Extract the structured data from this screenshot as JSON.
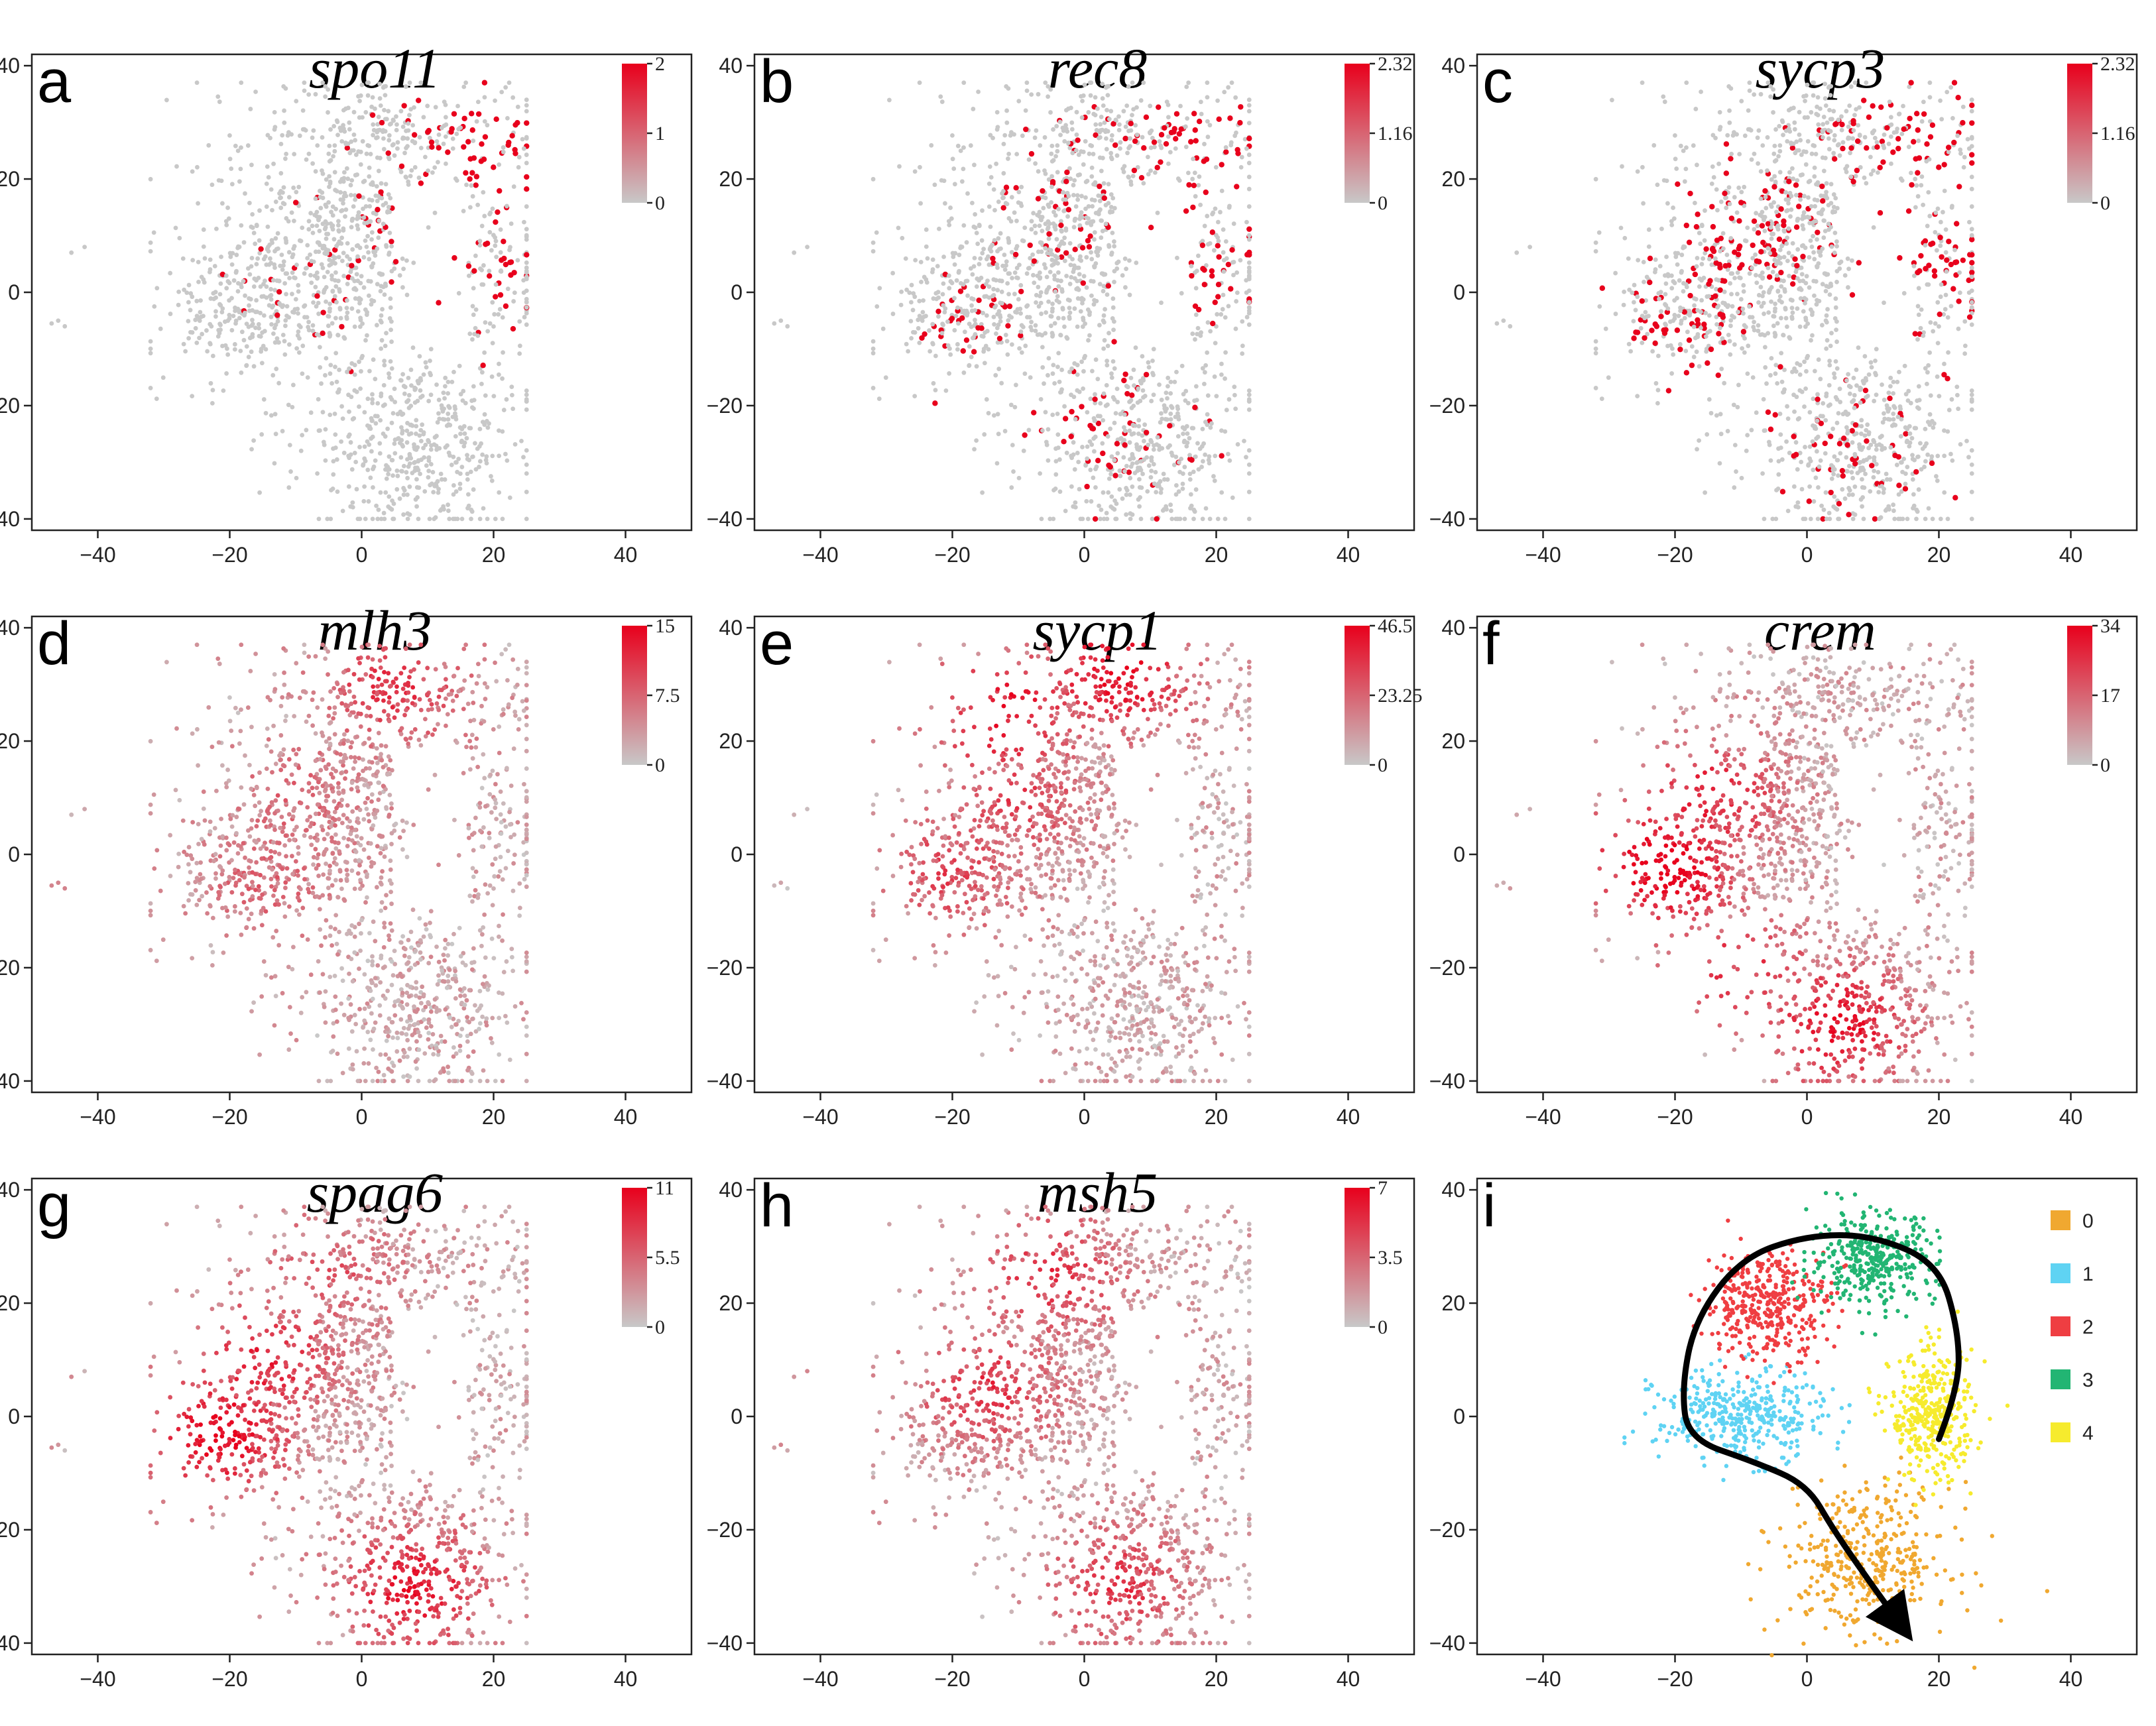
{
  "figure": {
    "description_free": true,
    "gray": "#c8c8c8",
    "red": "#e8001c",
    "arrow_color": "#000000"
  },
  "chart_data": [
    {
      "panel": "a",
      "type": "scatter",
      "title": "spo11",
      "mode": "sparse",
      "colorbar": {
        "max": 2,
        "ticks": [
          "2",
          "1",
          "0"
        ]
      },
      "hotspots": [
        [
          20,
          25,
          1.0
        ],
        [
          22,
          5,
          0.8
        ],
        [
          10,
          10,
          0.3
        ],
        [
          -5,
          0,
          0.2
        ]
      ],
      "x_ticks": [
        "−40",
        "−20",
        "0",
        "20",
        "40"
      ],
      "y_ticks": [
        "40",
        "20",
        "0",
        "−20",
        "−40"
      ],
      "xlim": [
        -50,
        50
      ],
      "ylim": [
        -42,
        42
      ]
    },
    {
      "panel": "b",
      "type": "scatter",
      "title": "rec8",
      "mode": "sparse",
      "colorbar": {
        "max": 2.32,
        "ticks": [
          "2.32",
          "1.16",
          "0"
        ]
      },
      "hotspots": [
        [
          18,
          25,
          1.0
        ],
        [
          20,
          5,
          0.6
        ],
        [
          -20,
          -5,
          0.4
        ],
        [
          5,
          -25,
          0.4
        ],
        [
          -5,
          15,
          0.4
        ]
      ],
      "x_ticks": [
        "−40",
        "−20",
        "0",
        "20",
        "40"
      ],
      "y_ticks": [
        "40",
        "20",
        "0",
        "−20",
        "−40"
      ],
      "xlim": [
        -50,
        50
      ],
      "ylim": [
        -42,
        42
      ]
    },
    {
      "panel": "c",
      "type": "scatter",
      "title": "sycp3",
      "mode": "sparse",
      "colorbar": {
        "max": 2.32,
        "ticks": [
          "2.32",
          "1.16",
          "0"
        ]
      },
      "hotspots": [
        [
          15,
          30,
          1.0
        ],
        [
          22,
          5,
          1.0
        ],
        [
          -10,
          10,
          0.8
        ],
        [
          -20,
          -5,
          0.6
        ],
        [
          5,
          -30,
          0.5
        ]
      ],
      "x_ticks": [
        "−40",
        "−20",
        "0",
        "20",
        "40"
      ],
      "y_ticks": [
        "40",
        "20",
        "0",
        "−20",
        "−40"
      ],
      "xlim": [
        -50,
        50
      ],
      "ylim": [
        -42,
        42
      ]
    },
    {
      "panel": "d",
      "type": "scatter",
      "title": "mlh3",
      "mode": "dense",
      "colorbar": {
        "max": 15,
        "ticks": [
          "15",
          "7.5",
          "0"
        ]
      },
      "hotspots": [
        [
          5,
          30,
          0.6
        ],
        [
          -10,
          10,
          0.3
        ],
        [
          -15,
          -5,
          0.3
        ]
      ],
      "x_ticks": [
        "−40",
        "−20",
        "0",
        "20",
        "40"
      ],
      "y_ticks": [
        "40",
        "20",
        "0",
        "−20",
        "−40"
      ],
      "xlim": [
        -50,
        50
      ],
      "ylim": [
        -42,
        42
      ]
    },
    {
      "panel": "e",
      "type": "scatter",
      "title": "sycp1",
      "mode": "dense",
      "colorbar": {
        "max": 46.5,
        "ticks": [
          "46.5",
          "23.25",
          "0"
        ]
      },
      "hotspots": [
        [
          5,
          33,
          0.9
        ],
        [
          -12,
          25,
          0.8
        ],
        [
          -10,
          10,
          0.5
        ],
        [
          -20,
          -3,
          0.5
        ]
      ],
      "x_ticks": [
        "−40",
        "−20",
        "0",
        "20",
        "40"
      ],
      "y_ticks": [
        "40",
        "20",
        "0",
        "−20",
        "−40"
      ],
      "xlim": [
        -50,
        50
      ],
      "ylim": [
        -42,
        42
      ]
    },
    {
      "panel": "f",
      "type": "scatter",
      "title": "crem",
      "mode": "dense",
      "colorbar": {
        "max": 34,
        "ticks": [
          "34",
          "17",
          "0"
        ]
      },
      "hotspots": [
        [
          -22,
          -2,
          1.0
        ],
        [
          -15,
          10,
          0.7
        ],
        [
          5,
          -30,
          0.8
        ],
        [
          -10,
          -20,
          0.6
        ]
      ],
      "x_ticks": [
        "−40",
        "−20",
        "0",
        "20",
        "40"
      ],
      "y_ticks": [
        "40",
        "20",
        "0",
        "−20",
        "−40"
      ],
      "xlim": [
        -50,
        50
      ],
      "ylim": [
        -42,
        42
      ]
    },
    {
      "panel": "g",
      "type": "scatter",
      "title": "spag6",
      "mode": "dense",
      "colorbar": {
        "max": 11,
        "ticks": [
          "11",
          "5.5",
          "0"
        ]
      },
      "hotspots": [
        [
          -22,
          -3,
          0.9
        ],
        [
          -15,
          10,
          0.7
        ],
        [
          8,
          -30,
          0.8
        ],
        [
          -5,
          25,
          0.4
        ]
      ],
      "x_ticks": [
        "−40",
        "−20",
        "0",
        "20",
        "40"
      ],
      "y_ticks": [
        "40",
        "20",
        "0",
        "−20",
        "−40"
      ],
      "xlim": [
        -50,
        50
      ],
      "ylim": [
        -42,
        42
      ]
    },
    {
      "panel": "h",
      "type": "scatter",
      "title": "msh5",
      "mode": "dense",
      "colorbar": {
        "max": 7,
        "ticks": [
          "7",
          "3.5",
          "0"
        ]
      },
      "hotspots": [
        [
          -15,
          5,
          0.6
        ],
        [
          -5,
          25,
          0.6
        ],
        [
          5,
          -30,
          0.6
        ]
      ],
      "x_ticks": [
        "−40",
        "−20",
        "0",
        "20",
        "40"
      ],
      "y_ticks": [
        "40",
        "20",
        "0",
        "−20",
        "−40"
      ],
      "xlim": [
        -50,
        50
      ],
      "ylim": [
        -42,
        42
      ]
    },
    {
      "panel": "i",
      "type": "scatter",
      "title": "",
      "mode": "clusters",
      "legend": [
        {
          "label": "0",
          "color": "#f0a830"
        },
        {
          "label": "1",
          "color": "#5fd3f3"
        },
        {
          "label": "2",
          "color": "#ef3e42"
        },
        {
          "label": "3",
          "color": "#22b573"
        },
        {
          "label": "4",
          "color": "#f6eb2d"
        }
      ],
      "clusters": [
        {
          "label": "0",
          "cx": 9,
          "cy": -25,
          "sx": 8,
          "sy": 8
        },
        {
          "label": "1",
          "cx": -10,
          "cy": 0,
          "sx": 8,
          "sy": 5
        },
        {
          "label": "2",
          "cx": -6,
          "cy": 20,
          "sx": 6,
          "sy": 6
        },
        {
          "label": "3",
          "cx": 10,
          "cy": 28,
          "sx": 6,
          "sy": 5
        },
        {
          "label": "4",
          "cx": 19,
          "cy": 0,
          "sx": 4,
          "sy": 7
        }
      ],
      "trajectory": [
        [
          20,
          -4
        ],
        [
          23,
          5
        ],
        [
          23,
          15
        ],
        [
          20,
          27
        ],
        [
          10,
          32
        ],
        [
          0,
          32
        ],
        [
          -10,
          28
        ],
        [
          -17,
          17
        ],
        [
          -19,
          5
        ],
        [
          -18,
          -4
        ],
        [
          -8,
          -8
        ],
        [
          0,
          -12
        ],
        [
          4,
          -20
        ],
        [
          10,
          -30
        ],
        [
          15,
          -38
        ]
      ],
      "x_ticks": [
        "−40",
        "−20",
        "0",
        "20",
        "40"
      ],
      "y_ticks": [
        "40",
        "20",
        "0",
        "−20",
        "−40"
      ],
      "xlim": [
        -50,
        50
      ],
      "ylim": [
        -42,
        42
      ]
    }
  ]
}
